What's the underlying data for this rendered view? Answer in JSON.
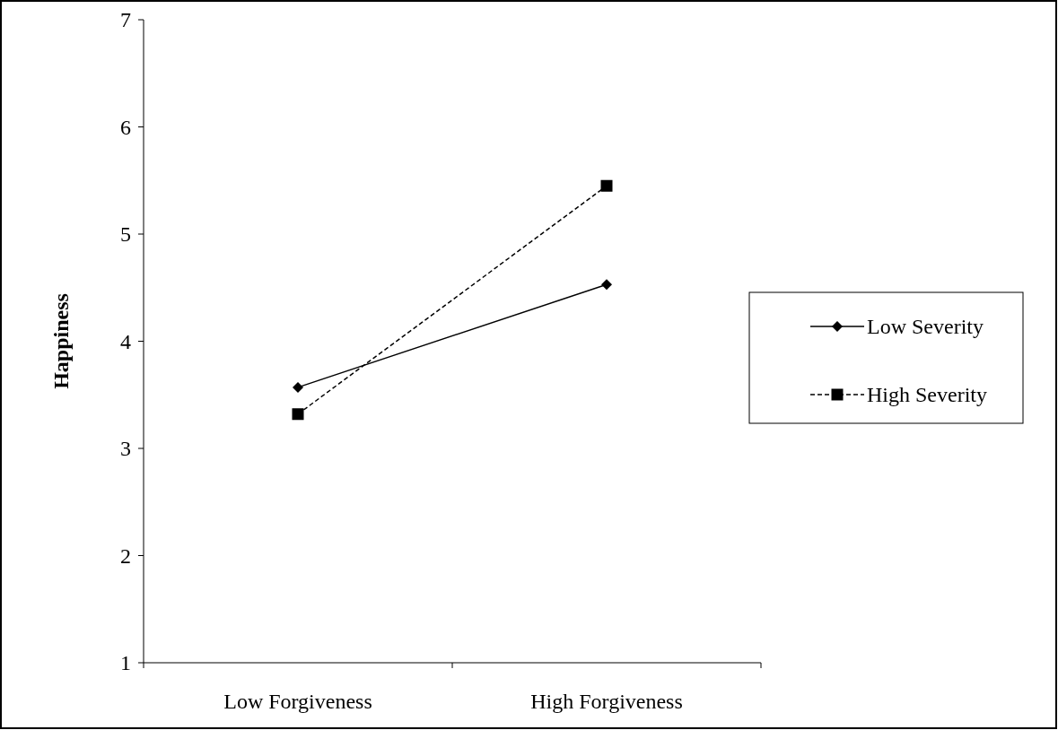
{
  "chart_data": {
    "type": "line",
    "ylabel": "Happiness",
    "categories": [
      "Low Forgiveness",
      "High Forgiveness"
    ],
    "series": [
      {
        "name": "Low Severity",
        "color": "#000000",
        "values": [
          3.57,
          4.53
        ],
        "marker": "diamond",
        "line_style": "solid"
      },
      {
        "name": "High Severity",
        "color": "#000000",
        "values": [
          3.32,
          5.45
        ],
        "marker": "square",
        "line_style": "dashed"
      }
    ],
    "ylim": [
      1,
      7
    ],
    "yticks": [
      1,
      2,
      3,
      4,
      5,
      6,
      7
    ],
    "grid": false,
    "legend": "right"
  }
}
